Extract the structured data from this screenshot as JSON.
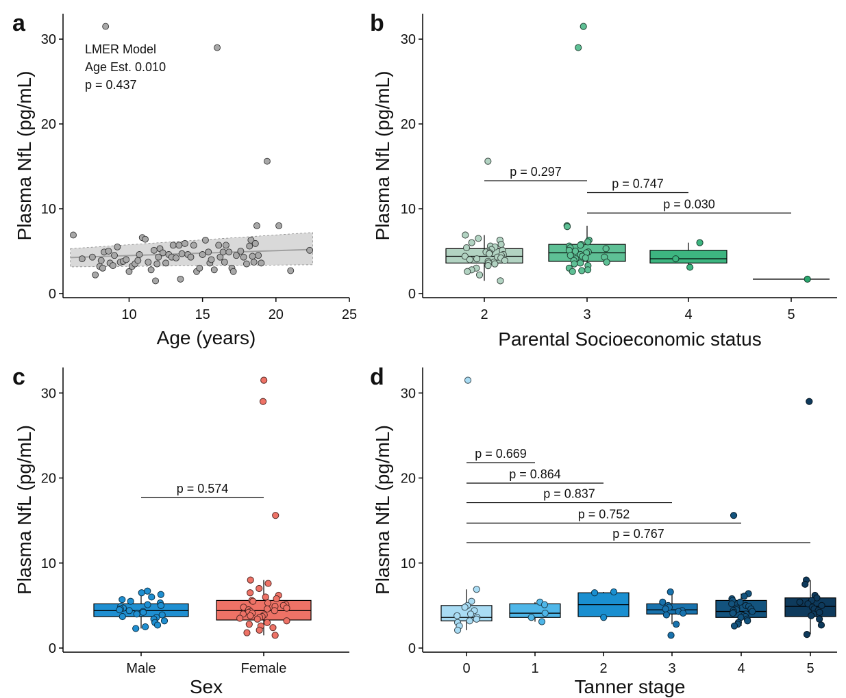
{
  "chart_data": [
    {
      "panel": "a",
      "type": "scatter",
      "xlabel": "Age (years)",
      "ylabel": "Plasma NfL (pg/mL)",
      "xlim": [
        5.5,
        25
      ],
      "ylim": [
        0,
        33
      ],
      "xticks": [
        10,
        15,
        20,
        25
      ],
      "yticks": [
        0,
        10,
        20,
        30
      ],
      "annotation": [
        "LMER Model",
        "Age Est. 0.010",
        "p = 0.437"
      ],
      "point_color": "#a8a8a8",
      "fit": {
        "x": [
          6,
          22.5
        ],
        "y": [
          4.25,
          5.2
        ],
        "band_lower": [
          3.15,
          3.4
        ],
        "band_upper": [
          5.3,
          7.2
        ],
        "color": "#a0a0a0",
        "band_color": "#d9d9d9"
      },
      "points": [
        [
          6.2,
          6.9
        ],
        [
          6.8,
          4.1
        ],
        [
          7.5,
          4.3
        ],
        [
          7.7,
          2.2
        ],
        [
          8.0,
          3.2
        ],
        [
          8.1,
          3.9
        ],
        [
          8.2,
          3.0
        ],
        [
          8.3,
          4.9
        ],
        [
          8.4,
          31.5
        ],
        [
          8.6,
          5.0
        ],
        [
          8.7,
          3.6
        ],
        [
          8.9,
          3.3
        ],
        [
          9.0,
          4.5
        ],
        [
          9.2,
          5.5
        ],
        [
          9.4,
          3.7
        ],
        [
          9.6,
          3.8
        ],
        [
          9.8,
          4.0
        ],
        [
          10.0,
          2.6
        ],
        [
          10.2,
          3.2
        ],
        [
          10.4,
          3.5
        ],
        [
          10.6,
          3.9
        ],
        [
          10.7,
          4.6
        ],
        [
          10.9,
          6.6
        ],
        [
          11.1,
          6.4
        ],
        [
          11.3,
          3.7
        ],
        [
          11.5,
          2.8
        ],
        [
          11.7,
          5.1
        ],
        [
          11.8,
          1.5
        ],
        [
          11.9,
          3.5
        ],
        [
          12.0,
          4.3
        ],
        [
          12.1,
          5.3
        ],
        [
          12.3,
          4.8
        ],
        [
          12.5,
          3.6
        ],
        [
          12.7,
          4.6
        ],
        [
          12.9,
          4.3
        ],
        [
          13.0,
          5.7
        ],
        [
          13.2,
          4.2
        ],
        [
          13.4,
          5.7
        ],
        [
          13.5,
          1.7
        ],
        [
          13.6,
          4.7
        ],
        [
          13.8,
          5.9
        ],
        [
          14.0,
          4.6
        ],
        [
          14.2,
          4.3
        ],
        [
          14.4,
          5.7
        ],
        [
          14.6,
          2.6
        ],
        [
          14.8,
          3.0
        ],
        [
          15.0,
          4.6
        ],
        [
          15.2,
          6.3
        ],
        [
          15.4,
          4.9
        ],
        [
          15.5,
          3.6
        ],
        [
          15.6,
          4.0
        ],
        [
          15.8,
          2.8
        ],
        [
          16.0,
          29.0
        ],
        [
          16.1,
          5.7
        ],
        [
          16.2,
          4.3
        ],
        [
          16.4,
          4.9
        ],
        [
          16.5,
          3.7
        ],
        [
          16.6,
          5.7
        ],
        [
          16.8,
          4.9
        ],
        [
          17.0,
          3.0
        ],
        [
          17.1,
          2.6
        ],
        [
          17.3,
          4.5
        ],
        [
          17.6,
          5.0
        ],
        [
          17.8,
          4.3
        ],
        [
          18.0,
          3.5
        ],
        [
          18.2,
          5.6
        ],
        [
          18.3,
          6.3
        ],
        [
          18.4,
          4.4
        ],
        [
          18.5,
          3.7
        ],
        [
          18.6,
          5.9
        ],
        [
          18.7,
          8.0
        ],
        [
          18.8,
          4.5
        ],
        [
          19.0,
          3.6
        ],
        [
          19.4,
          15.6
        ],
        [
          20.2,
          8.0
        ],
        [
          21.0,
          2.7
        ],
        [
          22.3,
          5.1
        ]
      ]
    },
    {
      "panel": "b",
      "type": "box",
      "xlabel": "Parental Socioeconomic status",
      "ylabel": "Plasma NfL (pg/mL)",
      "ylim": [
        0,
        33
      ],
      "yticks": [
        0,
        10,
        20,
        30
      ],
      "categories": [
        "2",
        "3",
        "4",
        "5"
      ],
      "colors": [
        "#b2d3c2",
        "#5ec095",
        "#3db580",
        "#2aa66e"
      ],
      "boxes": [
        {
          "q1": 3.6,
          "median": 4.4,
          "q3": 5.3,
          "wlow": 1.5,
          "whigh": 6.9
        },
        {
          "q1": 3.8,
          "median": 4.8,
          "q3": 5.8,
          "wlow": 2.6,
          "whigh": 8.0
        },
        {
          "q1": 3.6,
          "median": 4.1,
          "q3": 5.1,
          "wlow": 3.1,
          "whigh": 6.0
        },
        {
          "q1": 1.7,
          "median": 1.7,
          "q3": 1.7,
          "wlow": 1.7,
          "whigh": 1.7
        }
      ],
      "points": [
        [
          2,
          15.6
        ],
        [
          2,
          6.9
        ],
        [
          2,
          6.5
        ],
        [
          2,
          6.3
        ],
        [
          2,
          6.0
        ],
        [
          2,
          5.8
        ],
        [
          2,
          5.6
        ],
        [
          2,
          5.5
        ],
        [
          2,
          5.4
        ],
        [
          2,
          5.2
        ],
        [
          2,
          5.1
        ],
        [
          2,
          5.0
        ],
        [
          2,
          4.9
        ],
        [
          2,
          4.8
        ],
        [
          2,
          4.7
        ],
        [
          2,
          4.6
        ],
        [
          2,
          4.5
        ],
        [
          2,
          4.4
        ],
        [
          2,
          4.3
        ],
        [
          2,
          4.2
        ],
        [
          2,
          4.1
        ],
        [
          2,
          4.0
        ],
        [
          2,
          3.9
        ],
        [
          2,
          3.8
        ],
        [
          2,
          3.7
        ],
        [
          2,
          3.6
        ],
        [
          2,
          3.5
        ],
        [
          2,
          3.3
        ],
        [
          2,
          3.0
        ],
        [
          2,
          2.8
        ],
        [
          2,
          2.6
        ],
        [
          2,
          2.2
        ],
        [
          2,
          1.5
        ],
        [
          3,
          31.5
        ],
        [
          3,
          29.0
        ],
        [
          3,
          8.0
        ],
        [
          3,
          7.9
        ],
        [
          3,
          6.3
        ],
        [
          3,
          6.1
        ],
        [
          3,
          5.8
        ],
        [
          3,
          5.7
        ],
        [
          3,
          5.6
        ],
        [
          3,
          5.4
        ],
        [
          3,
          5.3
        ],
        [
          3,
          5.1
        ],
        [
          3,
          5.0
        ],
        [
          3,
          4.9
        ],
        [
          3,
          4.8
        ],
        [
          3,
          4.6
        ],
        [
          3,
          4.5
        ],
        [
          3,
          4.4
        ],
        [
          3,
          4.3
        ],
        [
          3,
          4.2
        ],
        [
          3,
          4.1
        ],
        [
          3,
          3.9
        ],
        [
          3,
          3.7
        ],
        [
          3,
          3.6
        ],
        [
          3,
          3.5
        ],
        [
          3,
          3.3
        ],
        [
          3,
          3.0
        ],
        [
          3,
          2.8
        ],
        [
          3,
          2.7
        ],
        [
          3,
          2.6
        ],
        [
          4,
          6.0
        ],
        [
          4,
          4.1
        ],
        [
          4,
          3.1
        ],
        [
          5,
          1.7
        ]
      ],
      "comparisons": [
        {
          "from": "2",
          "to": "3",
          "label": "p = 0.297",
          "y": 13.3
        },
        {
          "from": "3",
          "to": "4",
          "label": "p = 0.747",
          "y": 11.9
        },
        {
          "from": "3",
          "to": "5",
          "label": "p = 0.030",
          "y": 9.5
        }
      ]
    },
    {
      "panel": "c",
      "type": "box",
      "xlabel": "Sex",
      "ylabel": "Plasma NfL (pg/mL)",
      "ylim": [
        0,
        33
      ],
      "yticks": [
        0,
        10,
        20,
        30
      ],
      "categories": [
        "Male",
        "Female"
      ],
      "colors": [
        "#1f8fd1",
        "#ee7266"
      ],
      "boxes": [
        {
          "q1": 3.7,
          "median": 4.4,
          "q3": 5.2,
          "wlow": 2.3,
          "whigh": 6.7
        },
        {
          "q1": 3.3,
          "median": 4.4,
          "q3": 5.6,
          "wlow": 1.5,
          "whigh": 8.0
        }
      ],
      "points": [
        [
          "Male",
          6.7
        ],
        [
          "Male",
          6.5
        ],
        [
          "Male",
          6.3
        ],
        [
          "Male",
          6.0
        ],
        [
          "Male",
          5.7
        ],
        [
          "Male",
          5.5
        ],
        [
          "Male",
          5.3
        ],
        [
          "Male",
          5.1
        ],
        [
          "Male",
          5.0
        ],
        [
          "Male",
          4.9
        ],
        [
          "Male",
          4.7
        ],
        [
          "Male",
          4.6
        ],
        [
          "Male",
          4.5
        ],
        [
          "Male",
          4.4
        ],
        [
          "Male",
          4.3
        ],
        [
          "Male",
          4.2
        ],
        [
          "Male",
          4.1
        ],
        [
          "Male",
          4.0
        ],
        [
          "Male",
          3.9
        ],
        [
          "Male",
          3.7
        ],
        [
          "Male",
          3.6
        ],
        [
          "Male",
          3.4
        ],
        [
          "Male",
          3.2
        ],
        [
          "Male",
          3.0
        ],
        [
          "Male",
          2.7
        ],
        [
          "Male",
          2.5
        ],
        [
          "Male",
          2.3
        ],
        [
          "Female",
          31.5
        ],
        [
          "Female",
          29.0
        ],
        [
          "Female",
          15.6
        ],
        [
          "Female",
          8.0
        ],
        [
          "Female",
          7.6
        ],
        [
          "Female",
          7.0
        ],
        [
          "Female",
          6.5
        ],
        [
          "Female",
          6.2
        ],
        [
          "Female",
          6.0
        ],
        [
          "Female",
          5.8
        ],
        [
          "Female",
          5.6
        ],
        [
          "Female",
          5.5
        ],
        [
          "Female",
          5.3
        ],
        [
          "Female",
          5.1
        ],
        [
          "Female",
          5.0
        ],
        [
          "Female",
          4.9
        ],
        [
          "Female",
          4.8
        ],
        [
          "Female",
          4.7
        ],
        [
          "Female",
          4.6
        ],
        [
          "Female",
          4.5
        ],
        [
          "Female",
          4.4
        ],
        [
          "Female",
          4.3
        ],
        [
          "Female",
          4.2
        ],
        [
          "Female",
          4.1
        ],
        [
          "Female",
          4.0
        ],
        [
          "Female",
          3.9
        ],
        [
          "Female",
          3.8
        ],
        [
          "Female",
          3.7
        ],
        [
          "Female",
          3.6
        ],
        [
          "Female",
          3.5
        ],
        [
          "Female",
          3.4
        ],
        [
          "Female",
          3.2
        ],
        [
          "Female",
          3.0
        ],
        [
          "Female",
          2.8
        ],
        [
          "Female",
          2.6
        ],
        [
          "Female",
          2.4
        ],
        [
          "Female",
          2.1
        ],
        [
          "Female",
          1.8
        ],
        [
          "Female",
          1.5
        ]
      ],
      "comparisons": [
        {
          "from": "Male",
          "to": "Female",
          "label": "p = 0.574",
          "y": 17.7
        }
      ]
    },
    {
      "panel": "d",
      "type": "box",
      "xlabel": "Tanner stage",
      "ylabel": "Plasma NfL (pg/mL)",
      "ylim": [
        0,
        33
      ],
      "yticks": [
        0,
        10,
        20,
        30
      ],
      "categories": [
        "0",
        "1",
        "2",
        "3",
        "4",
        "5"
      ],
      "colors": [
        "#a9dcf4",
        "#4fb6e8",
        "#1a8fd0",
        "#1872ad",
        "#13537e",
        "#0e3a5c"
      ],
      "boxes": [
        {
          "q1": 3.2,
          "median": 3.6,
          "q3": 5.0,
          "wlow": 2.1,
          "whigh": 6.9
        },
        {
          "q1": 3.6,
          "median": 4.1,
          "q3": 5.2,
          "wlow": 3.1,
          "whigh": 5.4
        },
        {
          "q1": 3.7,
          "median": 5.1,
          "q3": 6.5,
          "wlow": 3.6,
          "whigh": 6.6
        },
        {
          "q1": 4.0,
          "median": 4.5,
          "q3": 5.2,
          "wlow": 2.8,
          "whigh": 6.6
        },
        {
          "q1": 3.6,
          "median": 4.3,
          "q3": 5.6,
          "wlow": 2.6,
          "whigh": 6.4
        },
        {
          "q1": 3.7,
          "median": 4.9,
          "q3": 5.9,
          "wlow": 1.6,
          "whigh": 8.0
        }
      ],
      "points": [
        [
          "0",
          31.5
        ],
        [
          "0",
          6.9
        ],
        [
          "0",
          5.5
        ],
        [
          "0",
          5.0
        ],
        [
          "0",
          4.8
        ],
        [
          "0",
          4.4
        ],
        [
          "0",
          4.0
        ],
        [
          "0",
          3.8
        ],
        [
          "0",
          3.6
        ],
        [
          "0",
          3.4
        ],
        [
          "0",
          3.2
        ],
        [
          "0",
          3.0
        ],
        [
          "0",
          2.6
        ],
        [
          "0",
          2.1
        ],
        [
          "1",
          5.4
        ],
        [
          "1",
          5.1
        ],
        [
          "1",
          4.1
        ],
        [
          "1",
          3.6
        ],
        [
          "1",
          3.1
        ],
        [
          "2",
          6.6
        ],
        [
          "2",
          6.5
        ],
        [
          "2",
          3.6
        ],
        [
          "3",
          6.6
        ],
        [
          "3",
          5.4
        ],
        [
          "3",
          5.0
        ],
        [
          "3",
          4.8
        ],
        [
          "3",
          4.6
        ],
        [
          "3",
          4.4
        ],
        [
          "3",
          4.3
        ],
        [
          "3",
          4.1
        ],
        [
          "3",
          3.9
        ],
        [
          "3",
          2.8
        ],
        [
          "3",
          1.5
        ],
        [
          "4",
          15.6
        ],
        [
          "4",
          6.4
        ],
        [
          "4",
          6.1
        ],
        [
          "4",
          5.8
        ],
        [
          "4",
          5.6
        ],
        [
          "4",
          5.4
        ],
        [
          "4",
          5.2
        ],
        [
          "4",
          5.0
        ],
        [
          "4",
          4.9
        ],
        [
          "4",
          4.7
        ],
        [
          "4",
          4.6
        ],
        [
          "4",
          4.5
        ],
        [
          "4",
          4.4
        ],
        [
          "4",
          4.3
        ],
        [
          "4",
          4.2
        ],
        [
          "4",
          4.1
        ],
        [
          "4",
          4.0
        ],
        [
          "4",
          3.8
        ],
        [
          "4",
          3.7
        ],
        [
          "4",
          3.6
        ],
        [
          "4",
          3.4
        ],
        [
          "4",
          3.2
        ],
        [
          "4",
          3.0
        ],
        [
          "4",
          2.8
        ],
        [
          "4",
          2.6
        ],
        [
          "5",
          29.0
        ],
        [
          "5",
          8.0
        ],
        [
          "5",
          7.5
        ],
        [
          "5",
          6.2
        ],
        [
          "5",
          5.9
        ],
        [
          "5",
          5.6
        ],
        [
          "5",
          5.4
        ],
        [
          "5",
          5.2
        ],
        [
          "5",
          5.0
        ],
        [
          "5",
          4.8
        ],
        [
          "5",
          4.6
        ],
        [
          "5",
          4.4
        ],
        [
          "5",
          4.2
        ],
        [
          "5",
          4.0
        ],
        [
          "5",
          3.8
        ],
        [
          "5",
          3.4
        ],
        [
          "5",
          2.7
        ],
        [
          "5",
          1.6
        ]
      ],
      "comparisons": [
        {
          "from": "0",
          "to": "1",
          "label": "p = 0.669",
          "y": 21.8
        },
        {
          "from": "0",
          "to": "2",
          "label": "p = 0.864",
          "y": 19.4
        },
        {
          "from": "0",
          "to": "3",
          "label": "p = 0.837",
          "y": 17.1
        },
        {
          "from": "0",
          "to": "4",
          "label": "p = 0.752",
          "y": 14.7
        },
        {
          "from": "0",
          "to": "5",
          "label": "p = 0.767",
          "y": 12.4
        }
      ]
    }
  ]
}
